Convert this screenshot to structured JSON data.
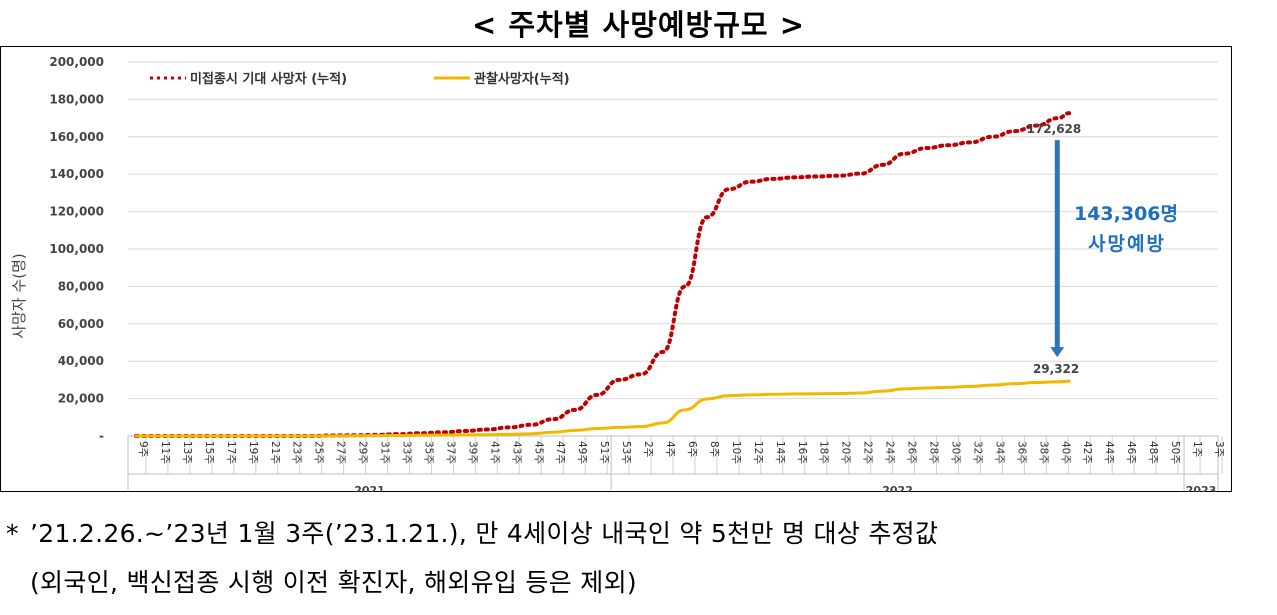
{
  "page_title": "< 주차별 사망예방규모 >",
  "chart_data": {
    "type": "line",
    "title": "< 주차별 사망예방규모 >",
    "ylabel": "사망자 수(명)",
    "xlabel": "",
    "ylim": [
      0,
      200000
    ],
    "y_ticks": [
      "-",
      "20,000",
      "40,000",
      "60,000",
      "80,000",
      "100,000",
      "120,000",
      "140,000",
      "160,000",
      "180,000",
      "200,000"
    ],
    "x_tick_labels": [
      "9주",
      "11주",
      "13주",
      "15주",
      "17주",
      "19주",
      "21주",
      "23주",
      "25주",
      "27주",
      "29주",
      "31주",
      "33주",
      "35주",
      "37주",
      "39주",
      "41주",
      "43주",
      "45주",
      "47주",
      "49주",
      "51주",
      "53주",
      "2주",
      "4주",
      "6주",
      "8주",
      "10주",
      "12주",
      "14주",
      "16주",
      "18주",
      "20주",
      "22주",
      "24주",
      "26주",
      "28주",
      "30주",
      "32주",
      "34주",
      "36주",
      "38주",
      "40주",
      "42주",
      "44주",
      "46주",
      "48주",
      "50주",
      "1주",
      "3주"
    ],
    "year_labels": [
      "2021",
      "2022",
      "2023"
    ],
    "legend": [
      "미접종시 기대 사망자 (누적)",
      "관찰사망자(누적)"
    ],
    "legend_position": "top-left",
    "series": [
      {
        "name": "미접종시 기대 사망자 (누적)",
        "color": "#c00000",
        "style": "dotted",
        "values": [
          0,
          0,
          0,
          0,
          0,
          0,
          0,
          0,
          0,
          300,
          400,
          600,
          1000,
          1500,
          2000,
          2700,
          3500,
          4600,
          6000,
          9000,
          14000,
          22000,
          30000,
          33000,
          45000,
          80000,
          117000,
          132000,
          136000,
          137500,
          138300,
          138800,
          139200,
          140300,
          145000,
          151000,
          154000,
          155500,
          157000,
          160000,
          163000,
          166000,
          170000,
          172628
        ]
      },
      {
        "name": "관찰사망자(누적)",
        "color": "#f2b800",
        "style": "solid",
        "values": [
          0,
          0,
          0,
          0,
          0,
          0,
          0,
          0,
          0,
          100,
          150,
          200,
          300,
          400,
          500,
          600,
          700,
          900,
          1200,
          2000,
          3000,
          4000,
          4600,
          5000,
          7000,
          14000,
          19800,
          21600,
          22000,
          22300,
          22500,
          22600,
          22700,
          23000,
          24000,
          25200,
          25700,
          26000,
          26500,
          27200,
          28000,
          28600,
          29000,
          29322
        ]
      }
    ],
    "series_x_weeks": [
      0,
      2,
      4,
      6,
      8,
      10,
      12,
      14,
      16,
      18,
      20,
      22,
      24,
      26,
      28,
      30,
      32,
      34,
      36,
      38,
      40,
      42,
      44,
      46,
      48,
      50,
      52,
      54,
      56,
      58,
      60,
      62,
      64,
      66,
      68,
      70,
      72,
      74,
      76,
      78,
      80,
      82,
      84,
      85
    ],
    "annotations": {
      "expected_end_label": "172,628",
      "observed_end_label": "29,322",
      "prevented_count": "143,306명",
      "prevented_text": "사망예방"
    }
  },
  "footnote": {
    "star": "*",
    "line1": "’21.2.26.~’23년 1월 3주(’23.1.21.), 만 4세이상 내국인 약 5천만 명 대상 추정값",
    "line2": "(외국인, 백신접종 시행 이전 확진자, 해외유입 등은 제외)"
  },
  "colors": {
    "expected": "#c00000",
    "observed": "#f2b800",
    "arrow": "#2e75b6",
    "annotation_text": "#1f6fbf"
  }
}
